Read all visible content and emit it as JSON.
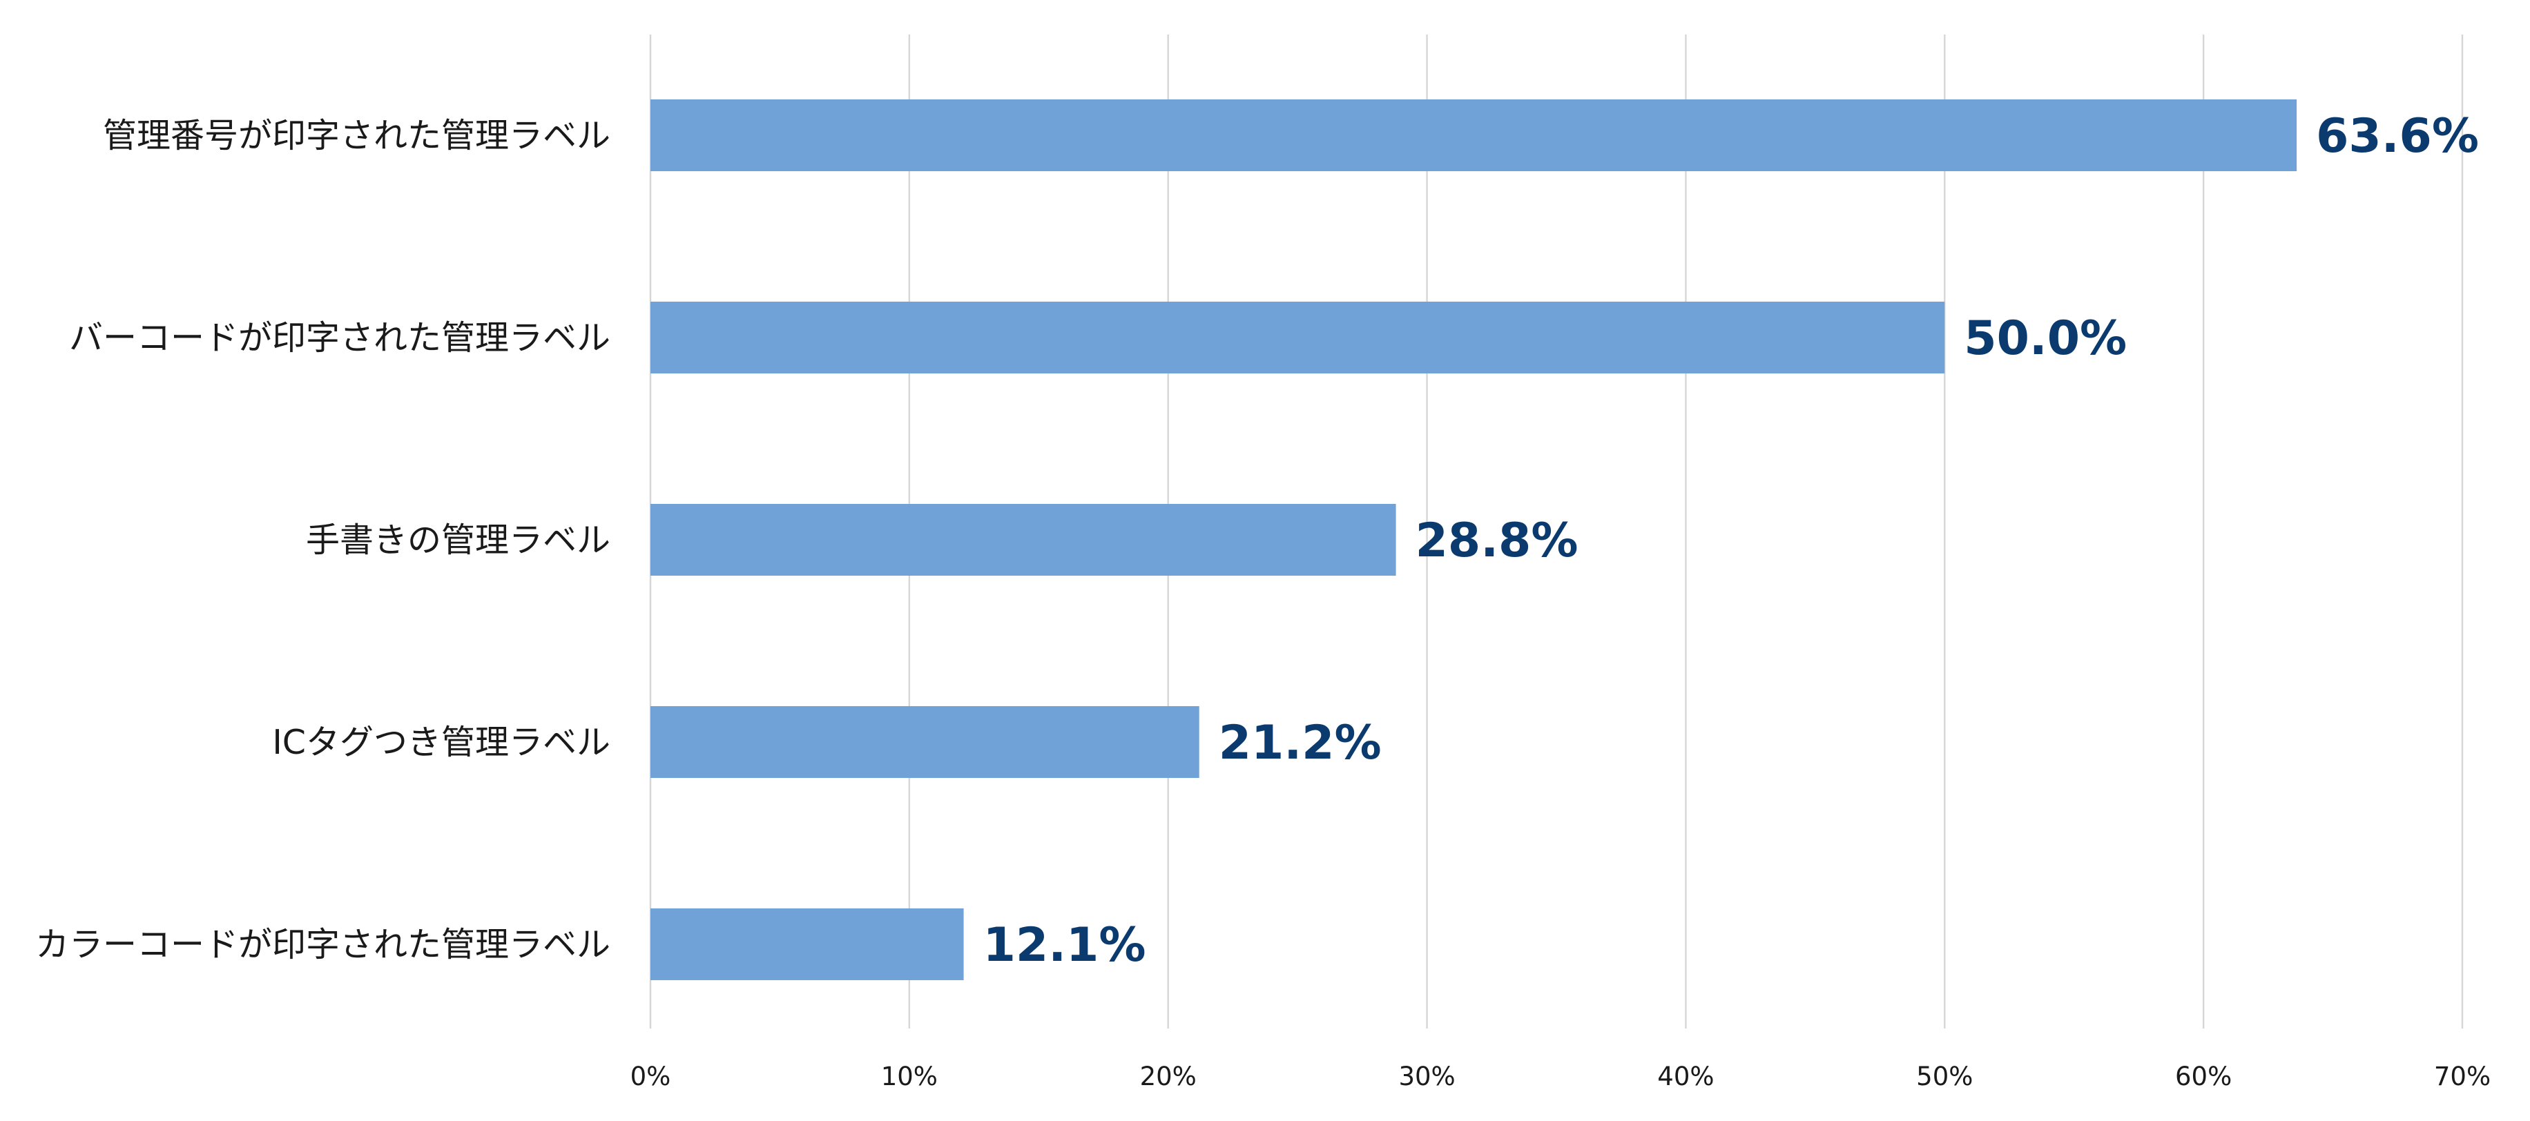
{
  "chart_data": {
    "type": "bar",
    "orientation": "horizontal",
    "categories": [
      "管理番号が印字された管理ラベル",
      "バーコードが印字された管理ラベル",
      "手書きの管理ラベル",
      "ICタグつき管理ラベル",
      "カラーコードが印字された管理ラベル"
    ],
    "values": [
      63.6,
      50.0,
      28.8,
      21.2,
      12.1
    ],
    "data_labels": [
      "63.6%",
      "50.0%",
      "28.8%",
      "21.2%",
      "12.1%"
    ],
    "x_ticks": [
      "0%",
      "10%",
      "20%",
      "30%",
      "40%",
      "50%",
      "60%",
      "70%"
    ],
    "xlim": [
      0,
      70
    ],
    "unit": "%",
    "grid": "vertical",
    "legend": "none",
    "title": "",
    "xlabel": "",
    "ylabel": "",
    "colors": {
      "bar": "#71a2d7",
      "data_label": "#0b3a6e"
    }
  }
}
